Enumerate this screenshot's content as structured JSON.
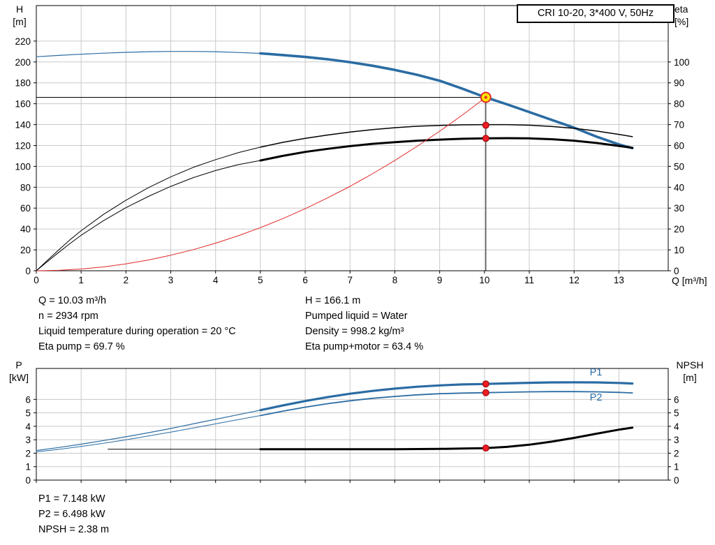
{
  "colors": {
    "curve_blue": "#2b6ca3",
    "curve_black": "#000000",
    "curve_red": "#e02828",
    "dot_red": "#ee1c25",
    "dot_edge": "#8d0000",
    "duty_fill": "#ffe600",
    "grid": "#c9c9c9",
    "axis": "#000000"
  },
  "labels": {
    "h_top": "H",
    "h_bottom": "[m]",
    "eta_top": "eta",
    "eta_bottom": "[%]",
    "q": "Q [m³/h]",
    "p_top": "P",
    "p_bottom": "[kW]",
    "npsh_top": "NPSH",
    "npsh_bottom": "[m]"
  },
  "info_top_left": [
    "Q = 10.03 m³/h",
    "n = 2934 rpm",
    "Liquid temperature during operation = 20 °C",
    "Eta pump = 69.7 %"
  ],
  "info_top_right": [
    "H = 166.1 m",
    "Pumped liquid = Water",
    "Density = 998.2 kg/m³",
    "Eta pump+motor = 63.4 %"
  ],
  "info_bottom": [
    "P1 = 7.148 kW",
    "P2 = 6.498 kW",
    "NPSH = 2.38 m"
  ],
  "chart_data": [
    {
      "type": "line",
      "name": "qh-eta-chart",
      "title": "CRI 10-20, 3*400 V, 50Hz",
      "xlabel": "Q [m³/h]",
      "ylabel_left": "H [m]",
      "ylabel_right": "eta [%]",
      "grid": true,
      "duty_point": {
        "Q": 10.03,
        "H": 166.1,
        "eta_pump": 69.7,
        "eta_pump_motor": 63.4
      },
      "x_axis": {
        "min": 0,
        "max": 14.1,
        "ticks": [
          0,
          1,
          2,
          3,
          4,
          5,
          6,
          7,
          8,
          9,
          10,
          11,
          12,
          13
        ]
      },
      "y_left": {
        "min": 0,
        "max": 254,
        "ticks": [
          0,
          20,
          40,
          60,
          80,
          100,
          120,
          140,
          160,
          180,
          200,
          220
        ]
      },
      "y_right": {
        "min": 0,
        "max": 127,
        "ticks": [
          0,
          10,
          20,
          30,
          40,
          50,
          60,
          70,
          80,
          90,
          100
        ]
      },
      "series": [
        {
          "name": "qh-curve-low",
          "axis": "left",
          "color": "#2b6ca3",
          "width": 1.2,
          "points": [
            [
              0,
              205
            ],
            [
              0.5,
              206.3
            ],
            [
              1,
              207.4
            ],
            [
              1.5,
              208.4
            ],
            [
              2,
              209.2
            ],
            [
              2.5,
              209.8
            ],
            [
              3,
              210.1
            ],
            [
              3.5,
              210.1
            ],
            [
              4,
              209.8
            ],
            [
              4.5,
              209.1
            ],
            [
              5,
              208.2
            ]
          ]
        },
        {
          "name": "qh-curve",
          "axis": "left",
          "color": "#2b6ca3",
          "width": 3.6,
          "points": [
            [
              5,
              208.2
            ],
            [
              5.5,
              206.6
            ],
            [
              6,
              204.8
            ],
            [
              6.5,
              202.6
            ],
            [
              7,
              199.8
            ],
            [
              7.5,
              196.4
            ],
            [
              8,
              192.4
            ],
            [
              8.5,
              187.6
            ],
            [
              9,
              182
            ],
            [
              9.5,
              174.5
            ],
            [
              10,
              166.5
            ],
            [
              10.03,
              166.1
            ],
            [
              10.5,
              159.5
            ],
            [
              11,
              152
            ],
            [
              11.5,
              144.5
            ],
            [
              12,
              137
            ],
            [
              12.5,
              128.5
            ],
            [
              13,
              121
            ],
            [
              13.3,
              117.5
            ]
          ]
        },
        {
          "name": "eta-pump-curve-low",
          "axis": "right",
          "color": "#000000",
          "width": 1,
          "points": [
            [
              0,
              0
            ],
            [
              0.25,
              5
            ],
            [
              0.5,
              10
            ],
            [
              0.75,
              14.8
            ],
            [
              1,
              19.2
            ],
            [
              1.5,
              27
            ],
            [
              2,
              33.8
            ],
            [
              2.5,
              39.8
            ],
            [
              3,
              45
            ],
            [
              3.5,
              49.5
            ],
            [
              4,
              53.2
            ],
            [
              4.5,
              56.5
            ],
            [
              5,
              59.2
            ]
          ]
        },
        {
          "name": "eta-pump-curve",
          "axis": "right",
          "color": "#000000",
          "width": 1.5,
          "points": [
            [
              5,
              59.2
            ],
            [
              5.5,
              61.5
            ],
            [
              6,
              63.4
            ],
            [
              6.5,
              65
            ],
            [
              7,
              66.4
            ],
            [
              7.5,
              67.6
            ],
            [
              8,
              68.5
            ],
            [
              8.5,
              69.2
            ],
            [
              9,
              69.6
            ],
            [
              9.5,
              69.9
            ],
            [
              10,
              70
            ],
            [
              10.5,
              70
            ],
            [
              11,
              69.7
            ],
            [
              11.5,
              69.1
            ],
            [
              12,
              68.2
            ],
            [
              12.5,
              66.9
            ],
            [
              13,
              65.3
            ],
            [
              13.3,
              64.2
            ]
          ]
        },
        {
          "name": "eta-pump-motor-curve-low",
          "axis": "right",
          "color": "#000000",
          "width": 1,
          "points": [
            [
              0,
              0
            ],
            [
              0.25,
              4.4
            ],
            [
              0.5,
              8.8
            ],
            [
              0.75,
              13
            ],
            [
              1,
              17
            ],
            [
              1.5,
              24
            ],
            [
              2,
              30.2
            ],
            [
              2.5,
              35.6
            ],
            [
              3,
              40.4
            ],
            [
              3.5,
              44.6
            ],
            [
              4,
              48
            ],
            [
              4.5,
              50.8
            ],
            [
              5,
              52.8
            ]
          ]
        },
        {
          "name": "eta-pump-motor-curve",
          "axis": "right",
          "color": "#000000",
          "width": 3,
          "points": [
            [
              5,
              52.8
            ],
            [
              5.5,
              55
            ],
            [
              6,
              56.9
            ],
            [
              6.5,
              58.4
            ],
            [
              7,
              59.7
            ],
            [
              7.5,
              60.8
            ],
            [
              8,
              61.6
            ],
            [
              8.5,
              62.3
            ],
            [
              9,
              62.8
            ],
            [
              9.5,
              63.2
            ],
            [
              10,
              63.4
            ],
            [
              10.5,
              63.5
            ],
            [
              11,
              63.4
            ],
            [
              11.5,
              63
            ],
            [
              12,
              62.3
            ],
            [
              12.5,
              61.2
            ],
            [
              13,
              59.8
            ],
            [
              13.3,
              58.9
            ]
          ]
        },
        {
          "name": "system-curve",
          "axis": "left",
          "color": "#e02828",
          "width": 1,
          "points": [
            [
              0,
              0
            ],
            [
              0.5,
              0.4
            ],
            [
              1,
              1.7
            ],
            [
              1.5,
              3.7
            ],
            [
              2,
              6.6
            ],
            [
              2.5,
              10.3
            ],
            [
              3,
              14.9
            ],
            [
              3.5,
              20.2
            ],
            [
              4,
              26.4
            ],
            [
              4.5,
              33.4
            ],
            [
              5,
              41.3
            ],
            [
              5.5,
              49.9
            ],
            [
              6,
              59.4
            ],
            [
              6.5,
              69.8
            ],
            [
              7,
              80.9
            ],
            [
              7.5,
              92.9
            ],
            [
              8,
              105.7
            ],
            [
              8.5,
              119.3
            ],
            [
              9,
              133.7
            ],
            [
              9.5,
              149
            ],
            [
              10,
              165.1
            ],
            [
              10.03,
              166.1
            ]
          ]
        },
        {
          "name": "duty-h-line",
          "axis": "left",
          "color": "#000000",
          "width": 1,
          "points": [
            [
              0,
              166.1
            ],
            [
              10.03,
              166.1
            ]
          ]
        },
        {
          "name": "duty-v-line",
          "axis": "left",
          "color": "#000000",
          "width": 1,
          "points": [
            [
              10.03,
              166.1
            ],
            [
              10.03,
              0
            ]
          ]
        }
      ],
      "markers": [
        {
          "name": "duty-point",
          "x": 10.03,
          "y": 166.1,
          "axis": "left",
          "style": "duty"
        },
        {
          "name": "eta-pump-point",
          "x": 10.03,
          "y": 69.7,
          "axis": "right",
          "style": "dot"
        },
        {
          "name": "eta-pump-motor-point",
          "x": 10.03,
          "y": 63.4,
          "axis": "right",
          "style": "dot"
        }
      ],
      "annotations": []
    },
    {
      "type": "line",
      "name": "power-npsh-chart",
      "title": "",
      "xlabel": "",
      "ylabel_left": "P [kW]",
      "ylabel_right": "NPSH [m]",
      "grid": true,
      "operating_values": {
        "P1": 7.148,
        "P2": 6.498,
        "NPSH": 2.38
      },
      "x_axis": {
        "min": 0,
        "max": 14.1,
        "ticks": [
          0,
          1,
          2,
          3,
          4,
          5,
          6,
          7,
          8,
          9,
          10,
          11,
          12,
          13
        ]
      },
      "y_left": {
        "min": 0,
        "max": 8.3,
        "ticks": [
          0,
          1,
          2,
          3,
          4,
          5,
          6
        ]
      },
      "y_right": {
        "min": 0,
        "max": 8.3,
        "ticks": [
          0,
          1,
          2,
          3,
          4,
          5,
          6
        ]
      },
      "series": [
        {
          "name": "p1-curve-low",
          "axis": "left",
          "color": "#2b6ca3",
          "width": 1.2,
          "points": [
            [
              0,
              2.2
            ],
            [
              0.5,
              2.42
            ],
            [
              1,
              2.67
            ],
            [
              1.5,
              2.94
            ],
            [
              2,
              3.22
            ],
            [
              2.5,
              3.52
            ],
            [
              3,
              3.84
            ],
            [
              3.5,
              4.18
            ],
            [
              4,
              4.52
            ],
            [
              4.5,
              4.86
            ],
            [
              5,
              5.2
            ]
          ]
        },
        {
          "name": "p1-curve",
          "axis": "left",
          "color": "#2b6ca3",
          "width": 3.2,
          "points": [
            [
              5,
              5.2
            ],
            [
              5.5,
              5.55
            ],
            [
              6,
              5.88
            ],
            [
              6.5,
              6.17
            ],
            [
              7,
              6.42
            ],
            [
              7.5,
              6.63
            ],
            [
              8,
              6.8
            ],
            [
              8.5,
              6.94
            ],
            [
              9,
              7.04
            ],
            [
              9.5,
              7.11
            ],
            [
              10,
              7.145
            ],
            [
              10.03,
              7.148
            ],
            [
              10.5,
              7.19
            ],
            [
              11,
              7.23
            ],
            [
              11.5,
              7.26
            ],
            [
              12,
              7.27
            ],
            [
              12.5,
              7.26
            ],
            [
              13,
              7.22
            ],
            [
              13.3,
              7.18
            ]
          ]
        },
        {
          "name": "p2-curve-low",
          "axis": "left",
          "color": "#2b6ca3",
          "width": 1,
          "points": [
            [
              0,
              2.1
            ],
            [
              0.5,
              2.28
            ],
            [
              1,
              2.5
            ],
            [
              1.5,
              2.74
            ],
            [
              2,
              3.0
            ],
            [
              2.5,
              3.28
            ],
            [
              3,
              3.57
            ],
            [
              3.5,
              3.87
            ],
            [
              4,
              4.18
            ],
            [
              4.5,
              4.49
            ],
            [
              5,
              4.8
            ]
          ]
        },
        {
          "name": "p2-curve",
          "axis": "left",
          "color": "#2b6ca3",
          "width": 1.8,
          "points": [
            [
              5,
              4.8
            ],
            [
              5.5,
              5.12
            ],
            [
              6,
              5.42
            ],
            [
              6.5,
              5.68
            ],
            [
              7,
              5.9
            ],
            [
              7.5,
              6.08
            ],
            [
              8,
              6.22
            ],
            [
              8.5,
              6.34
            ],
            [
              9,
              6.42
            ],
            [
              9.5,
              6.47
            ],
            [
              10,
              6.497
            ],
            [
              10.03,
              6.498
            ],
            [
              10.5,
              6.53
            ],
            [
              11,
              6.56
            ],
            [
              11.5,
              6.58
            ],
            [
              12,
              6.58
            ],
            [
              12.5,
              6.56
            ],
            [
              13,
              6.52
            ],
            [
              13.3,
              6.48
            ]
          ]
        },
        {
          "name": "npsh-curve-low",
          "axis": "right",
          "color": "#000000",
          "width": 1,
          "points": [
            [
              1.6,
              2.3
            ],
            [
              5,
              2.3
            ]
          ]
        },
        {
          "name": "npsh-curve",
          "axis": "right",
          "color": "#000000",
          "width": 3,
          "points": [
            [
              5,
              2.3
            ],
            [
              6,
              2.3
            ],
            [
              7,
              2.3
            ],
            [
              8,
              2.3
            ],
            [
              8.5,
              2.31
            ],
            [
              9,
              2.32
            ],
            [
              9.5,
              2.35
            ],
            [
              10,
              2.37
            ],
            [
              10.03,
              2.38
            ],
            [
              10.5,
              2.47
            ],
            [
              11,
              2.63
            ],
            [
              11.5,
              2.86
            ],
            [
              12,
              3.14
            ],
            [
              12.5,
              3.45
            ],
            [
              13,
              3.75
            ],
            [
              13.3,
              3.9
            ]
          ]
        }
      ],
      "markers": [
        {
          "name": "p1-point",
          "x": 10.03,
          "y": 7.148,
          "axis": "left",
          "style": "dot"
        },
        {
          "name": "p2-point",
          "x": 10.03,
          "y": 6.498,
          "axis": "left",
          "style": "dot"
        },
        {
          "name": "npsh-point",
          "x": 10.03,
          "y": 2.38,
          "axis": "right",
          "style": "dot"
        }
      ],
      "annotations": [
        {
          "name": "p1-curve-label",
          "text": "P1",
          "x": 12.35,
          "y": 7.78,
          "axis": "left",
          "color": "#2b6ca3"
        },
        {
          "name": "p2-curve-label",
          "text": "P2",
          "x": 12.35,
          "y": 5.92,
          "axis": "left",
          "color": "#2b6ca3"
        }
      ]
    }
  ]
}
